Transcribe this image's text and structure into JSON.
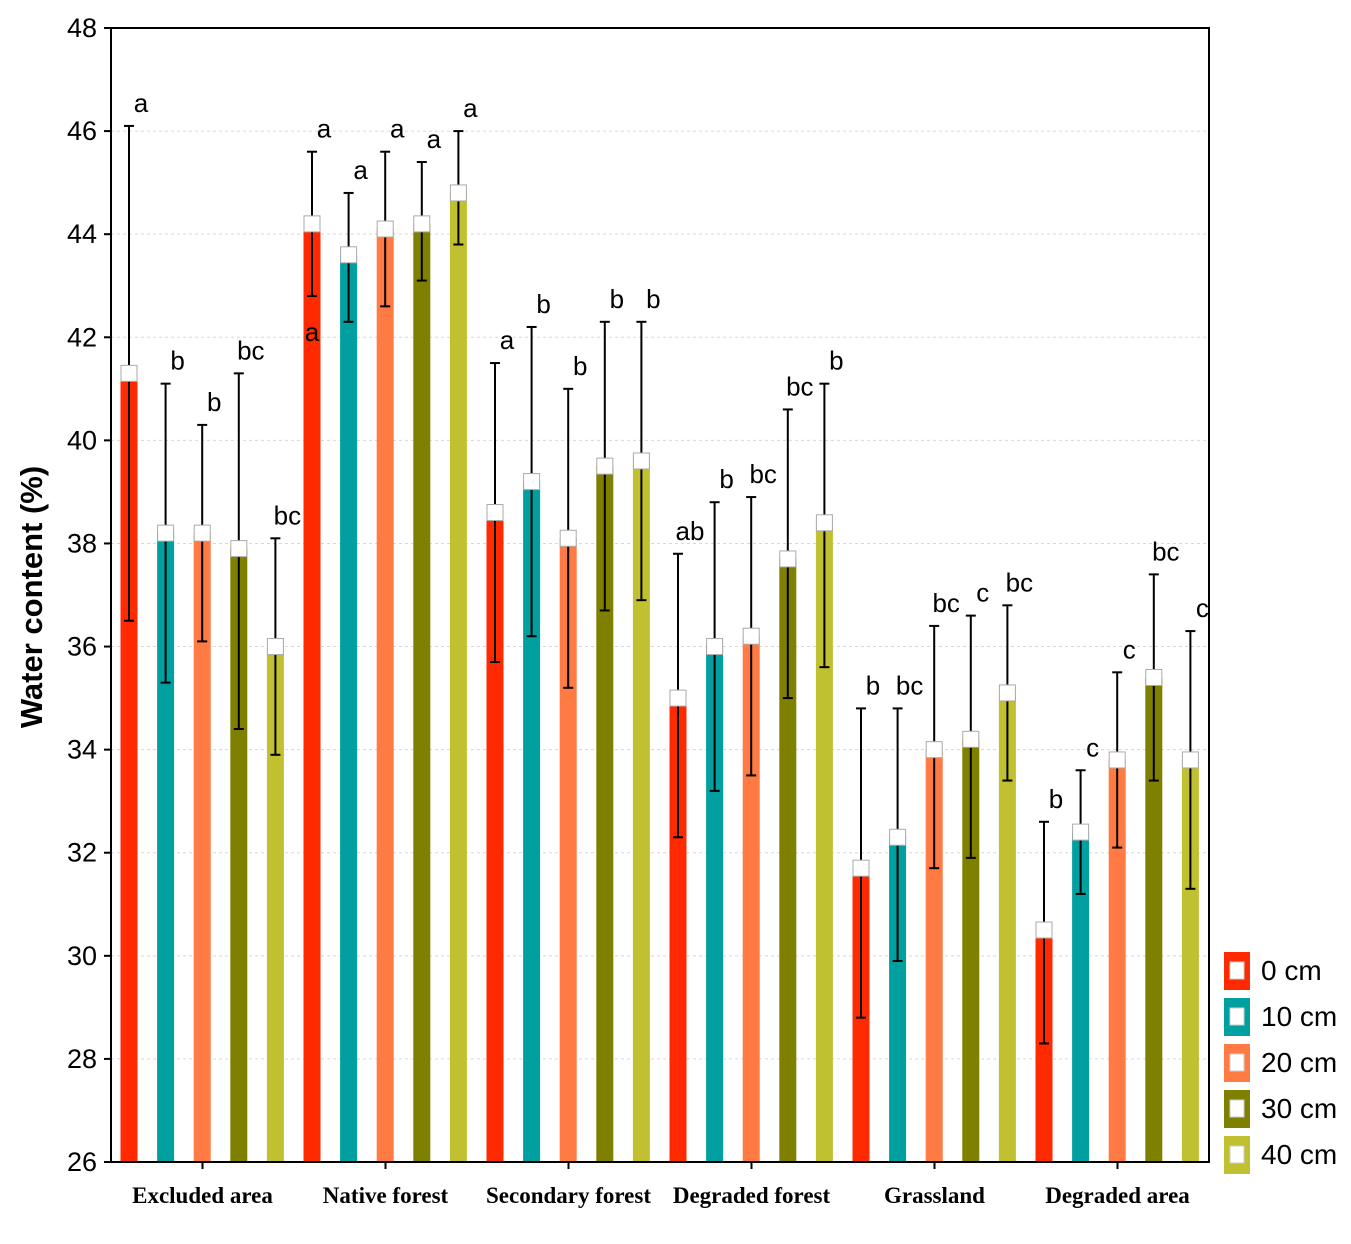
{
  "chart_data": {
    "type": "bar",
    "title": "",
    "xlabel": "",
    "ylabel": "Water content (%)",
    "ylim": [
      26,
      48
    ],
    "yticks": [
      "26",
      "28",
      "30",
      "32",
      "34",
      "36",
      "38",
      "40",
      "42",
      "44",
      "46",
      "48"
    ],
    "grid": true,
    "legend_position": "bottom-right",
    "categories": [
      "Excluded area",
      "Native forest",
      "Secondary forest",
      "Degraded forest",
      "Grassland",
      "Degraded area"
    ],
    "series": [
      {
        "name": "0 cm",
        "color": "#ff2a00",
        "values": [
          41.3,
          44.2,
          38.6,
          35.0,
          31.7,
          30.5
        ],
        "err_low": [
          36.5,
          42.8,
          35.7,
          32.3,
          28.8,
          28.3
        ],
        "err_high": [
          46.1,
          45.6,
          41.5,
          37.8,
          34.8,
          32.6
        ],
        "letters": [
          "a",
          "a",
          "a",
          "ab",
          "b",
          "b"
        ]
      },
      {
        "name": "10 cm",
        "color": "#00a0a0",
        "values": [
          38.2,
          43.6,
          39.2,
          36.0,
          32.3,
          32.4
        ],
        "err_low": [
          35.3,
          42.3,
          36.2,
          33.2,
          29.9,
          31.2
        ],
        "err_high": [
          41.1,
          44.8,
          42.2,
          38.8,
          34.8,
          33.6
        ],
        "letters": [
          "b",
          "a",
          "b",
          "b",
          "bc",
          "c"
        ]
      },
      {
        "name": "20 cm",
        "color": "#ff7b43",
        "values": [
          38.2,
          44.1,
          38.1,
          36.2,
          34.0,
          33.8
        ],
        "err_low": [
          36.1,
          42.6,
          35.2,
          33.5,
          31.7,
          32.1
        ],
        "err_high": [
          40.3,
          45.6,
          41.0,
          38.9,
          36.4,
          35.5
        ],
        "letters": [
          "b",
          "a",
          "b",
          "bc",
          "bc",
          "c"
        ]
      },
      {
        "name": "30 cm",
        "color": "#808000",
        "values": [
          37.9,
          44.2,
          39.5,
          37.7,
          34.2,
          35.4
        ],
        "err_low": [
          34.4,
          43.1,
          36.7,
          35.0,
          31.9,
          33.4
        ],
        "err_high": [
          41.3,
          45.4,
          42.3,
          40.6,
          36.6,
          37.4
        ],
        "letters": [
          "bc",
          "a",
          "b",
          "bc",
          "c",
          "bc"
        ]
      },
      {
        "name": "40 cm",
        "color": "#c0c030",
        "values": [
          36.0,
          44.8,
          39.6,
          38.4,
          35.1,
          33.8
        ],
        "err_low": [
          33.9,
          43.8,
          36.9,
          35.6,
          33.4,
          31.3
        ],
        "err_high": [
          38.1,
          46.0,
          42.3,
          41.1,
          36.8,
          36.3
        ],
        "letters": [
          "bc",
          "a",
          "b",
          "b",
          "bc",
          "c"
        ]
      }
    ],
    "annotations": [
      {
        "text": "a",
        "category": "Native forest",
        "series": "0 cm",
        "value": 42.1
      }
    ]
  }
}
